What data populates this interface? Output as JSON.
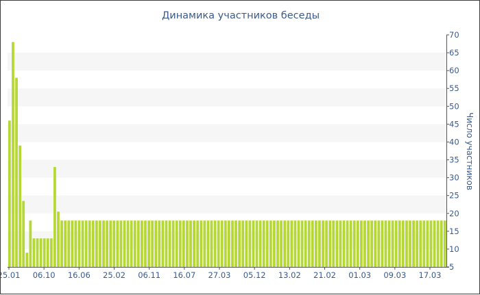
{
  "chart_data": {
    "type": "bar",
    "title": "Динамика участников беседы",
    "ylabel": "Число участников",
    "ylim": [
      5,
      70
    ],
    "yticks": [
      5,
      10,
      15,
      20,
      25,
      30,
      35,
      40,
      45,
      50,
      55,
      60,
      65,
      70
    ],
    "y_axis_position": "right",
    "grid": "alternating horizontal bands",
    "x_tick_labels": [
      "25.01",
      "06.10",
      "16.06",
      "25.02",
      "06.11",
      "16.07",
      "27.03",
      "05.12",
      "13.02",
      "21.02",
      "01.03",
      "09.03",
      "17.03"
    ],
    "values": [
      46,
      68,
      58,
      39,
      23.5,
      9,
      18,
      13,
      13,
      13,
      13,
      13,
      13,
      33,
      20.5,
      18,
      18,
      18,
      18,
      18,
      18,
      18,
      18,
      18,
      18,
      18,
      18,
      18,
      18,
      18,
      18,
      18,
      18,
      18,
      18,
      18,
      18,
      18,
      18,
      18,
      18,
      18,
      18,
      18,
      18,
      18,
      18,
      18,
      18,
      18,
      18,
      18,
      18,
      18,
      18,
      18,
      18,
      18,
      18,
      18,
      18,
      18,
      18,
      18,
      18,
      18,
      18,
      18,
      18,
      18,
      18,
      18,
      18,
      18,
      18,
      18,
      18,
      18,
      18,
      18,
      18,
      18,
      18,
      18,
      18,
      18,
      18,
      18,
      18,
      18,
      18,
      18,
      18,
      18,
      18,
      18,
      18,
      18,
      18,
      18,
      18,
      18,
      18,
      18,
      18,
      18,
      18,
      18,
      18,
      18,
      18,
      18,
      18,
      18,
      18,
      18,
      18,
      18,
      18,
      18,
      18,
      18,
      18,
      18,
      18,
      18
    ],
    "colors": {
      "bar": "#b5d836",
      "band": "#f6f6f6",
      "text": "#3a5a8c",
      "axis": "#555555"
    }
  }
}
